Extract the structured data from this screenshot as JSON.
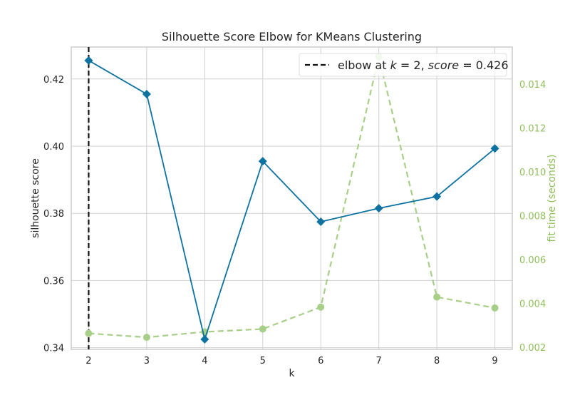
{
  "chart_data": {
    "type": "line",
    "title": "Silhouette Score Elbow for KMeans Clustering",
    "xlabel": "k",
    "ylabel": "silhouette score",
    "y2label": "fit time (seconds)",
    "x": [
      2,
      3,
      4,
      5,
      6,
      7,
      8,
      9
    ],
    "xlim": [
      1.7,
      9.3
    ],
    "ylim": [
      0.3395,
      0.4295
    ],
    "y2lim": [
      0.0019,
      0.0157
    ],
    "yticks": [
      "0.34",
      "0.36",
      "0.38",
      "0.40",
      "0.42"
    ],
    "y2ticks": [
      "0.002",
      "0.004",
      "0.006",
      "0.008",
      "0.010",
      "0.012",
      "0.014"
    ],
    "grid": true,
    "series": [
      {
        "name": "silhouette score",
        "axis": "left",
        "color": "#0e72a0",
        "marker": "diamond",
        "values": [
          0.4255,
          0.4155,
          0.3425,
          0.3955,
          0.3775,
          0.3815,
          0.385,
          0.3993
        ]
      },
      {
        "name": "fit time",
        "axis": "right",
        "color": "#a8cf88",
        "marker": "circle",
        "line_style": "dashed",
        "values": [
          0.00263,
          0.00245,
          0.0027,
          0.00283,
          0.00383,
          0.01525,
          0.00429,
          0.00379
        ]
      }
    ],
    "elbow": {
      "k": 2,
      "score": 0.426,
      "color": "#111111",
      "line_style": "dashed"
    },
    "legend": {
      "placement": "top-right",
      "label": "elbow at $k=2$, $score=0.426$"
    }
  }
}
